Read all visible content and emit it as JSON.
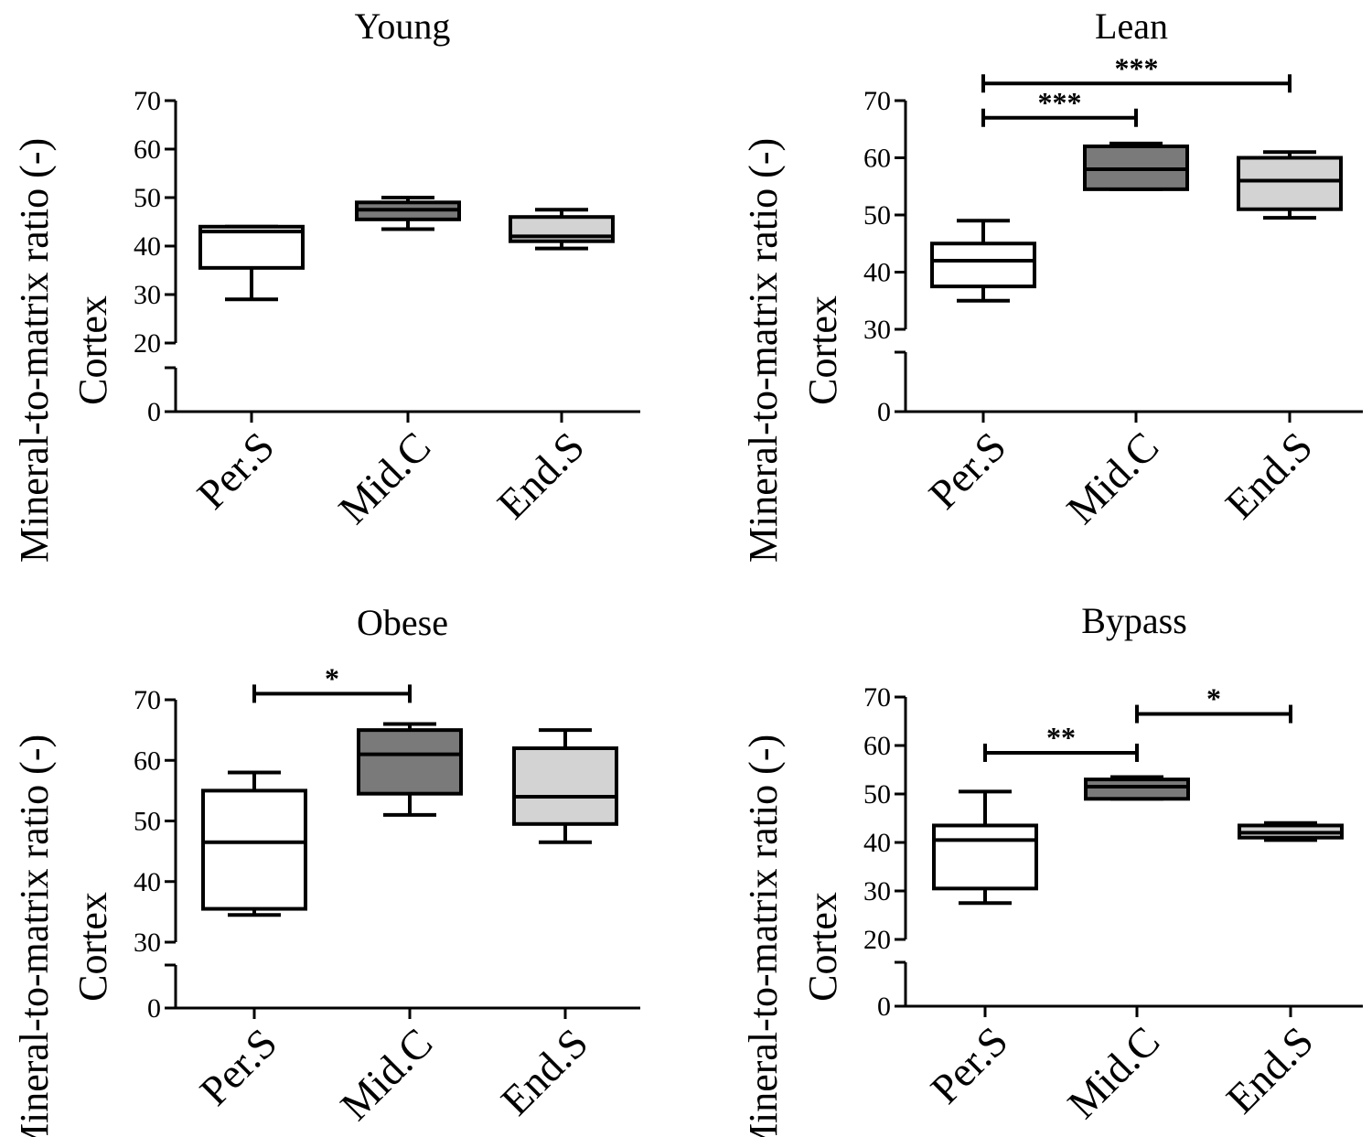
{
  "chart_data": [
    {
      "type": "box",
      "title": "Young",
      "ylabel_line1": "Mineral-to-matrix ratio (-)",
      "ylabel_line2": "Cortex",
      "categories": [
        "Per.S",
        "Mid.C",
        "End.S"
      ],
      "y_ticks_upper": [
        "20",
        "30",
        "40",
        "50",
        "60",
        "70"
      ],
      "y_tick_zero": "0",
      "ylim_upper": [
        20,
        70
      ],
      "axis_break": true,
      "fills": [
        "#ffffff",
        "#7a7a7a",
        "#d3d3d3"
      ],
      "boxes": [
        {
          "min": 29,
          "q1": 35.5,
          "median": 43,
          "q3": 44,
          "max": 44
        },
        {
          "min": 43.5,
          "q1": 45.5,
          "median": 47.5,
          "q3": 49,
          "max": 50
        },
        {
          "min": 39.5,
          "q1": 41,
          "median": 42,
          "q3": 46,
          "max": 47.5
        }
      ],
      "significance": []
    },
    {
      "type": "box",
      "title": "Lean",
      "ylabel_line1": "Mineral-to-matrix ratio (-)",
      "ylabel_line2": "Cortex",
      "categories": [
        "Per.S",
        "Mid.C",
        "End.S"
      ],
      "y_ticks_upper": [
        "30",
        "40",
        "50",
        "60",
        "70"
      ],
      "y_tick_zero": "0",
      "ylim_upper": [
        30,
        70
      ],
      "axis_break": true,
      "fills": [
        "#ffffff",
        "#7a7a7a",
        "#d3d3d3"
      ],
      "boxes": [
        {
          "min": 35,
          "q1": 37.5,
          "median": 42,
          "q3": 45,
          "max": 49
        },
        {
          "min": 54.5,
          "q1": 54.5,
          "median": 58,
          "q3": 62,
          "max": 62.5
        },
        {
          "min": 49.5,
          "q1": 51,
          "median": 56,
          "q3": 60,
          "max": 61
        }
      ],
      "significance": [
        {
          "from": 0,
          "to": 1,
          "label": "***",
          "y": 67
        },
        {
          "from": 0,
          "to": 2,
          "label": "***",
          "y": 73
        }
      ]
    },
    {
      "type": "box",
      "title": "Obese",
      "ylabel_line1": "Mineral-to-matrix ratio (-)",
      "ylabel_line2": "Cortex",
      "categories": [
        "Per.S",
        "Mid.C",
        "End.S"
      ],
      "y_ticks_upper": [
        "30",
        "40",
        "50",
        "60",
        "70"
      ],
      "y_tick_zero": "0",
      "ylim_upper": [
        30,
        70
      ],
      "axis_break": true,
      "fills": [
        "#ffffff",
        "#7a7a7a",
        "#d3d3d3"
      ],
      "boxes": [
        {
          "min": 34.5,
          "q1": 35.5,
          "median": 46.5,
          "q3": 55,
          "max": 58
        },
        {
          "min": 51,
          "q1": 54.5,
          "median": 61,
          "q3": 65,
          "max": 66
        },
        {
          "min": 46.5,
          "q1": 49.5,
          "median": 54,
          "q3": 62,
          "max": 65
        }
      ],
      "significance": [
        {
          "from": 0,
          "to": 1,
          "label": "*",
          "y": 71
        }
      ]
    },
    {
      "type": "box",
      "title": "Bypass",
      "ylabel_line1": "Mineral-to-matrix ratio (-)",
      "ylabel_line2": "Cortex",
      "categories": [
        "Per.S",
        "Mid.C",
        "End.S"
      ],
      "y_ticks_upper": [
        "20",
        "30",
        "40",
        "50",
        "60",
        "70"
      ],
      "y_tick_zero": "0",
      "ylim_upper": [
        20,
        70
      ],
      "axis_break": true,
      "fills": [
        "#ffffff",
        "#7a7a7a",
        "#d3d3d3"
      ],
      "boxes": [
        {
          "min": 27.5,
          "q1": 30.5,
          "median": 40.5,
          "q3": 43.5,
          "max": 50.5
        },
        {
          "min": 49,
          "q1": 49,
          "median": 51.5,
          "q3": 53,
          "max": 53.5
        },
        {
          "min": 40.5,
          "q1": 41,
          "median": 42,
          "q3": 43.5,
          "max": 44
        }
      ],
      "significance": [
        {
          "from": 0,
          "to": 1,
          "label": "**",
          "y": 58.5
        },
        {
          "from": 1,
          "to": 2,
          "label": "*",
          "y": 66.5
        }
      ]
    }
  ]
}
